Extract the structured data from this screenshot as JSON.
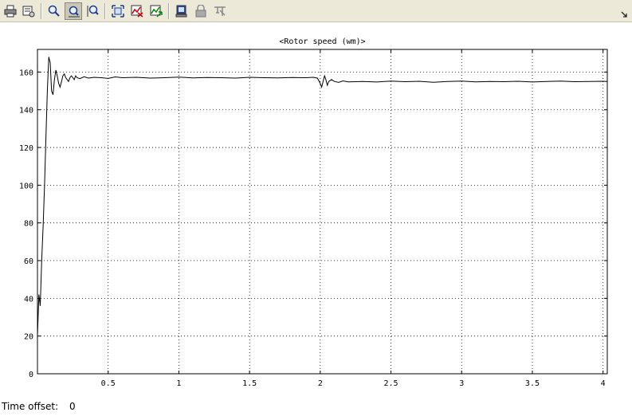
{
  "toolbar": {
    "buttons": [
      {
        "icon": "print-icon"
      },
      {
        "icon": "parameters-icon"
      },
      {
        "icon": "zoom-icon"
      },
      {
        "icon": "zoom-x-axis-icon",
        "active": true
      },
      {
        "icon": "zoom-y-axis-icon"
      },
      {
        "icon": "autoscale-icon"
      },
      {
        "icon": "save-axes-settings-icon"
      },
      {
        "icon": "restore-axes-settings-icon"
      },
      {
        "icon": "floating-scope-icon"
      },
      {
        "icon": "lock-axes-icon"
      },
      {
        "icon": "signal-selection-icon"
      }
    ],
    "dock_icon": "dock-arrow-icon"
  },
  "status": {
    "time_offset_label": "Time offset:",
    "time_offset_value": "0"
  },
  "chart_data": {
    "type": "line",
    "title": "<Rotor speed (wm)>",
    "xlabel": "",
    "ylabel": "",
    "xlim": [
      0,
      4.03
    ],
    "ylim": [
      0,
      172
    ],
    "xticks": [
      0.5,
      1,
      1.5,
      2,
      2.5,
      3,
      3.5,
      4
    ],
    "xtick_labels": [
      "0.5",
      "1",
      "1.5",
      "2",
      "2.5",
      "3",
      "3.5",
      "4"
    ],
    "yticks": [
      0,
      20,
      40,
      60,
      80,
      100,
      120,
      140,
      160
    ],
    "ytick_labels": [
      "0",
      "20",
      "40",
      "60",
      "80",
      "100",
      "120",
      "140",
      "160"
    ],
    "grid": true,
    "line_color": "#000000",
    "series": [
      {
        "x": [
          0,
          0.01,
          0.02,
          0.03,
          0.04,
          0.05,
          0.06,
          0.07,
          0.08,
          0.09,
          0.1,
          0.11,
          0.12,
          0.13,
          0.14,
          0.15,
          0.16,
          0.17,
          0.18,
          0.19,
          0.2,
          0.21,
          0.22,
          0.23,
          0.24,
          0.25,
          0.26,
          0.27,
          0.28,
          0.3,
          0.33,
          0.36,
          0.4,
          0.45,
          0.5,
          0.55,
          0.6,
          0.7,
          0.8,
          0.9,
          1.0,
          1.1,
          1.2,
          1.3,
          1.4,
          1.5,
          1.6,
          1.7,
          1.8,
          1.9,
          1.95,
          1.98,
          2.0,
          2.01,
          2.02,
          2.03,
          2.04,
          2.05,
          2.06,
          2.08,
          2.1,
          2.13,
          2.16,
          2.2,
          2.3,
          2.4,
          2.5,
          2.6,
          2.7,
          2.8,
          2.9,
          3.0,
          3.1,
          3.2,
          3.3,
          3.4,
          3.5,
          3.6,
          3.7,
          3.8,
          3.9,
          4.0,
          4.03
        ],
        "y": [
          20,
          42,
          36,
          60,
          78,
          100,
          125,
          150,
          168,
          165,
          150,
          148,
          156,
          161,
          158,
          154,
          152,
          155,
          158,
          159,
          157,
          156,
          155,
          157,
          158,
          157,
          156,
          158,
          157,
          156.5,
          157.5,
          156.8,
          157.2,
          157,
          156.6,
          157.4,
          157,
          157.2,
          156.8,
          157,
          157.3,
          156.9,
          157.1,
          157,
          156.8,
          157.2,
          157,
          156.9,
          157.1,
          157,
          157.2,
          156.8,
          154,
          152,
          155,
          158,
          156,
          153,
          155,
          156,
          155,
          154.5,
          155.3,
          154.8,
          155,
          154.7,
          155.2,
          154.9,
          155.1,
          154.6,
          155,
          155.2,
          154.8,
          155,
          154.9,
          155.1,
          154.7,
          155,
          155.2,
          154.9,
          155,
          155.1,
          155
        ]
      }
    ]
  }
}
